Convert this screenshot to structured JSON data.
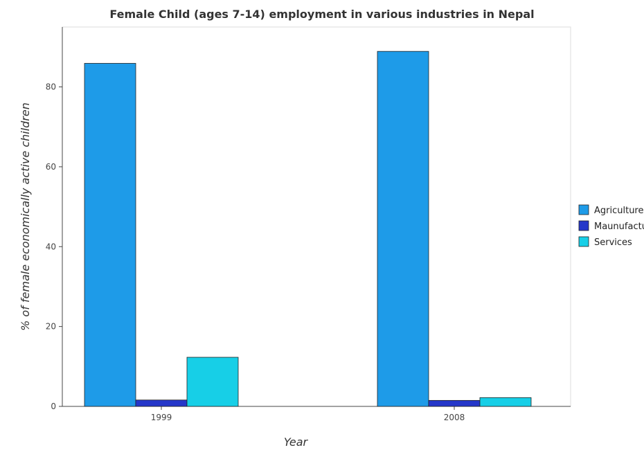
{
  "chart_data": {
    "type": "bar",
    "title": "Female Child (ages 7-14) employment in various industries in Nepal",
    "xlabel": "Year",
    "ylabel": "% of female economically active children",
    "categories": [
      "1999",
      "2008"
    ],
    "series": [
      {
        "name": "Agriculture",
        "color": "#1e9be8",
        "values": [
          85.9,
          88.9
        ]
      },
      {
        "name": "Maunufacturing",
        "color": "#2537c9",
        "values": [
          1.6,
          1.5
        ]
      },
      {
        "name": "Services",
        "color": "#17cfe7",
        "values": [
          12.3,
          2.2
        ]
      }
    ],
    "ylim": [
      0,
      95
    ],
    "yticks": [
      0,
      20,
      40,
      60,
      80
    ],
    "grid": false,
    "legend_position": "right"
  }
}
